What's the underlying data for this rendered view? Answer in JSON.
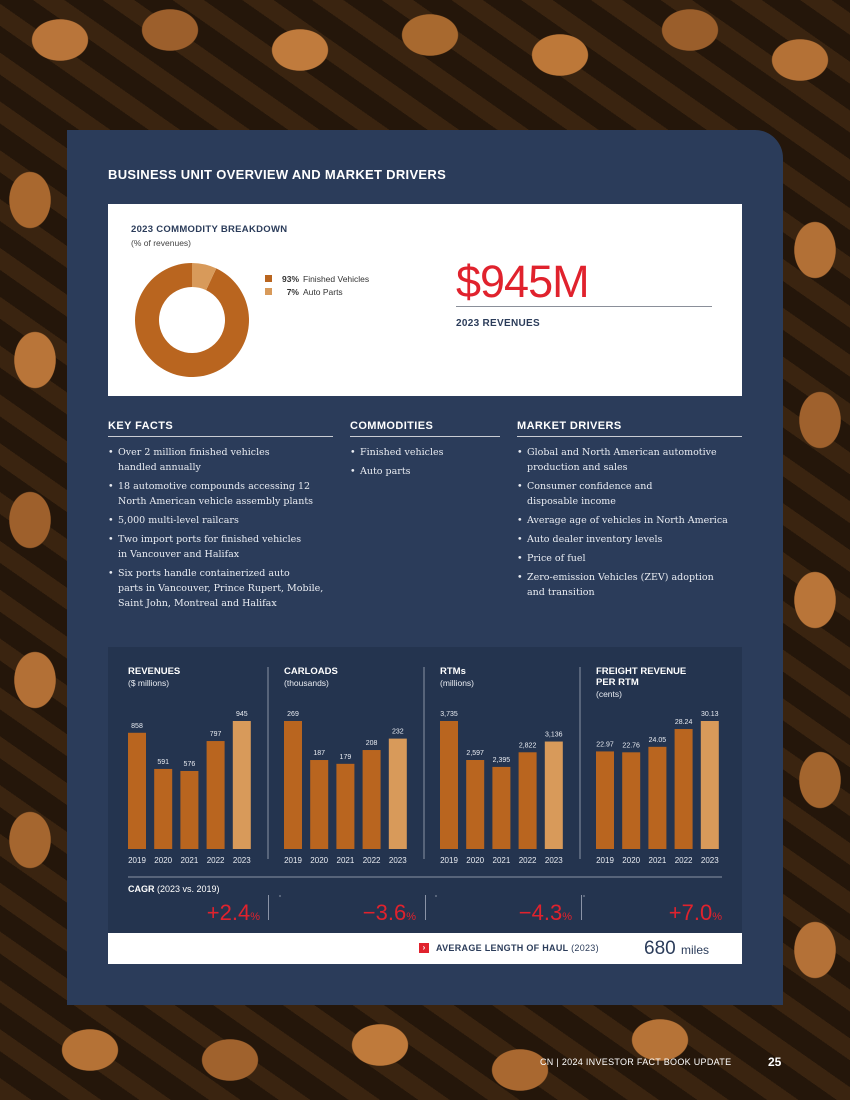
{
  "section_title": "BUSINESS UNIT OVERVIEW AND MARKET DRIVERS",
  "commodity_breakdown": {
    "title": "2023 COMMODITY BREAKDOWN",
    "subtitle": "(% of revenues)",
    "colors": [
      "#b9651f",
      "#d89a5a"
    ],
    "legend": [
      {
        "pct": "93%",
        "label": "Finished Vehicles",
        "value": 93
      },
      {
        "pct": "7%",
        "label": "Auto Parts",
        "value": 7
      }
    ]
  },
  "headline": {
    "value": "$945M",
    "label": "2023 REVENUES"
  },
  "key_facts": {
    "heading": "KEY FACTS",
    "items": [
      [
        "Over 2 million finished vehicles",
        "handled annually"
      ],
      [
        "18 automotive compounds accessing 12",
        "North American vehicle assembly plants"
      ],
      [
        "5,000 multi-level railcars"
      ],
      [
        "Two import ports for finished vehicles",
        "in Vancouver and Halifax"
      ],
      [
        "Six ports handle containerized auto",
        "parts in Vancouver, Prince Rupert, Mobile,",
        "Saint John, Montreal and Halifax"
      ]
    ]
  },
  "commodities": {
    "heading": "COMMODITIES",
    "items": [
      [
        "Finished vehicles"
      ],
      [
        "Auto parts"
      ]
    ]
  },
  "market_drivers": {
    "heading": "MARKET DRIVERS",
    "items": [
      [
        "Global and North American automotive",
        "production and sales"
      ],
      [
        "Consumer confidence and",
        "disposable income"
      ],
      [
        "Average age of vehicles in North America"
      ],
      [
        "Auto dealer inventory levels"
      ],
      [
        "Price of fuel"
      ],
      [
        "Zero-emission Vehicles (ZEV) adoption",
        "and transition"
      ]
    ]
  },
  "chart_data": [
    {
      "type": "bar",
      "title": [
        "REVENUES"
      ],
      "subtitle": "($ millions)",
      "categories": [
        "2019",
        "2020",
        "2021",
        "2022",
        "2023"
      ],
      "values": [
        858,
        591,
        576,
        797,
        945
      ],
      "labels": [
        "858",
        "591",
        "576",
        "797",
        "945"
      ]
    },
    {
      "type": "bar",
      "title": [
        "CARLOADS"
      ],
      "subtitle": "(thousands)",
      "categories": [
        "2019",
        "2020",
        "2021",
        "2022",
        "2023"
      ],
      "values": [
        269,
        187,
        179,
        208,
        232
      ],
      "labels": [
        "269",
        "187",
        "179",
        "208",
        "232"
      ]
    },
    {
      "type": "bar",
      "title": [
        "RTMs"
      ],
      "subtitle": "(millions)",
      "categories": [
        "2019",
        "2020",
        "2021",
        "2022",
        "2023"
      ],
      "values": [
        3735,
        2597,
        2395,
        2822,
        3136
      ],
      "labels": [
        "3,735",
        "2,597",
        "2,395",
        "2,822",
        "3,136"
      ]
    },
    {
      "type": "bar",
      "title": [
        "FREIGHT REVENUE",
        "PER RTM"
      ],
      "subtitle": "(cents)",
      "categories": [
        "2019",
        "2020",
        "2021",
        "2022",
        "2023"
      ],
      "values": [
        22.97,
        22.76,
        24.05,
        28.24,
        30.13
      ],
      "labels": [
        "22.97",
        "22.76",
        "24.05",
        "28.24",
        "30.13"
      ]
    }
  ],
  "bar_colors": {
    "base": "#b9651f",
    "latest": "#d89a5a"
  },
  "cagr": {
    "label": "CAGR",
    "period": "(2023 vs. 2019)",
    "values": [
      {
        "value": "+2.4",
        "unit": "%"
      },
      {
        "value": "−3.6",
        "unit": "%"
      },
      {
        "value": "−4.3",
        "unit": "%"
      },
      {
        "value": "+7.0",
        "unit": "%"
      }
    ]
  },
  "haul": {
    "arrow": "›",
    "label": "AVERAGE LENGTH OF HAUL",
    "period": "(2023)",
    "value": "680",
    "unit": "miles"
  },
  "footer": {
    "text": "CN  |  2024 INVESTOR FACT BOOK UPDATE",
    "page": "25"
  }
}
